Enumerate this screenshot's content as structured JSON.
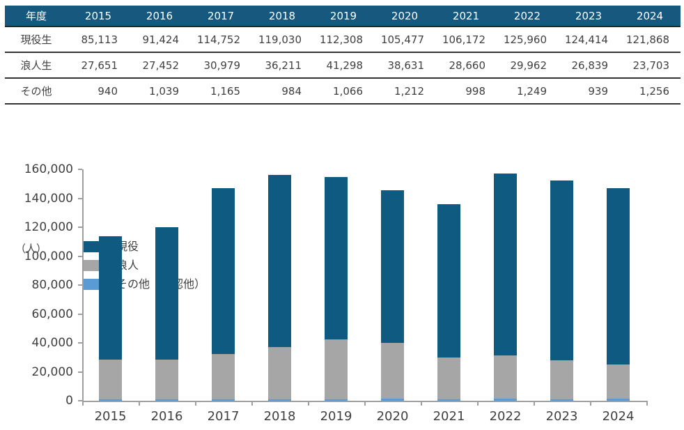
{
  "table": {
    "header": [
      "年度",
      "2015",
      "2016",
      "2017",
      "2018",
      "2019",
      "2020",
      "2021",
      "2022",
      "2023",
      "2024"
    ],
    "rows": [
      {
        "label": "現役生",
        "values": [
          "85,113",
          "91,424",
          "114,752",
          "119,030",
          "112,308",
          "105,477",
          "106,172",
          "125,960",
          "124,414",
          "121,868"
        ]
      },
      {
        "label": "浪人生",
        "values": [
          "27,651",
          "27,452",
          "30,979",
          "36,211",
          "41,298",
          "38,631",
          "28,660",
          "29,962",
          "26,839",
          "23,703"
        ]
      },
      {
        "label": "その他",
        "values": [
          "940",
          "1,039",
          "1,165",
          "984",
          "1,066",
          "1,212",
          "998",
          "1,249",
          "939",
          "1,256"
        ]
      }
    ]
  },
  "chart_data": {
    "type": "bar",
    "stacked": true,
    "unit_label": "（人）",
    "categories": [
      "2015",
      "2016",
      "2017",
      "2018",
      "2019",
      "2020",
      "2021",
      "2022",
      "2023",
      "2024"
    ],
    "series": [
      {
        "name": "現役",
        "color": "#0F5A80",
        "values": [
          85113,
          91424,
          114752,
          119030,
          112308,
          105477,
          106172,
          125960,
          124414,
          121868
        ]
      },
      {
        "name": "浪人",
        "color": "#A6A6A6",
        "values": [
          27651,
          27452,
          30979,
          36211,
          41298,
          38631,
          28660,
          29962,
          26839,
          23703
        ]
      },
      {
        "name": "その他（高認他）",
        "color": "#5B9BD5",
        "values": [
          940,
          1039,
          1165,
          984,
          1066,
          1212,
          998,
          1249,
          939,
          1256
        ]
      }
    ],
    "stack_order_bottom_to_top": [
      "その他（高認他）",
      "浪人",
      "現役"
    ],
    "ylim": [
      0,
      160000
    ],
    "ytick_step": 20000,
    "grid": false,
    "legend_position": "top-left"
  },
  "colors": {
    "table_header_bg": "#16587E",
    "table_header_text": "#FFFFFF",
    "axis": "#9E9E9E",
    "text": "#404040"
  }
}
